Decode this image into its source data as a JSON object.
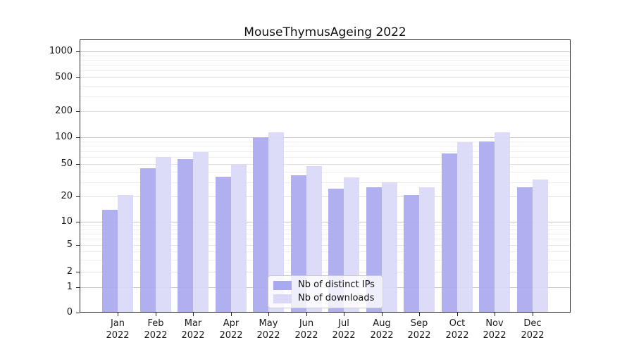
{
  "title": "MouseThymusAgeing 2022",
  "chart_data": {
    "type": "bar",
    "title": "MouseThymusAgeing 2022",
    "xlabel": "",
    "ylabel": "",
    "yscale": "symlog",
    "grid": true,
    "legend_position": "lower center",
    "categories": [
      "Jan",
      "Feb",
      "Mar",
      "Apr",
      "May",
      "Jun",
      "Jul",
      "Aug",
      "Sep",
      "Oct",
      "Nov",
      "Dec"
    ],
    "year_label": "2022",
    "yticks": [
      0,
      1,
      2,
      5,
      10,
      20,
      50,
      100,
      200,
      500,
      1000
    ],
    "ylim": [
      0,
      1300
    ],
    "series": [
      {
        "name": "Nb of distinct IPs",
        "color": "#a9a9f0",
        "values": [
          14,
          44,
          57,
          35,
          100,
          36,
          25,
          26,
          21,
          66,
          90,
          26
        ]
      },
      {
        "name": "Nb of downloads",
        "color": "#d9d9f7",
        "values": [
          21,
          60,
          68,
          50,
          113,
          47,
          34,
          30,
          26,
          88,
          113,
          32
        ]
      }
    ]
  }
}
